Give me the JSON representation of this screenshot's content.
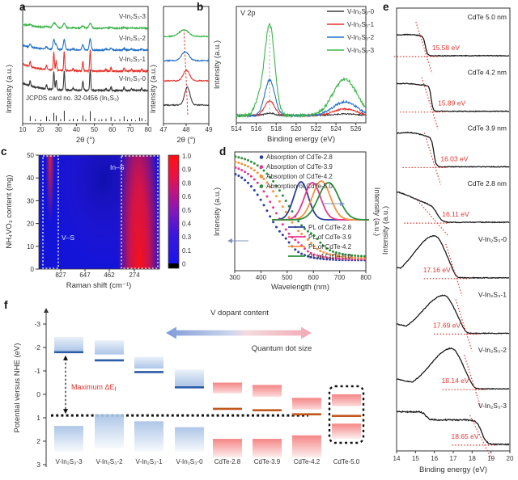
{
  "panel_labels": {
    "a": "a",
    "b": "b",
    "c": "c",
    "d": "d",
    "e": "e",
    "f": "f"
  },
  "chart_data": [
    {
      "id": "a",
      "type": "line",
      "xlabel": "2θ (°)",
      "ylabel": "Intensity (a.u.)",
      "xlim": [
        10,
        80
      ],
      "xticks": [
        10,
        20,
        30,
        40,
        50,
        60,
        70,
        80
      ],
      "series": [
        {
          "name": "V-In₂S₃-3",
          "color": "#3cb54b"
        },
        {
          "name": "V-In₂S₃-2",
          "color": "#2471c8"
        },
        {
          "name": "V-In₂S₃-1",
          "color": "#e8332d"
        },
        {
          "name": "V-In₂S₃-0",
          "color": "#3a3a3a"
        }
      ],
      "peaks_2theta": [
        14.2,
        23.3,
        27.4,
        28.7,
        33.2,
        38.2,
        43.6,
        47.7,
        56.5,
        59.3,
        66.6,
        70.8,
        76.4
      ],
      "peak_heights": [
        0.25,
        0.2,
        0.85,
        0.45,
        0.9,
        0.1,
        0.45,
        1.0,
        0.1,
        0.18,
        0.15,
        0.08,
        0.1
      ],
      "reference_label": "JCPDS card no. 32-0456 (In₂S₃)",
      "reference_sticks": [
        [
          14.2,
          0.5
        ],
        [
          17.1,
          0.2
        ],
        [
          20.1,
          0.15
        ],
        [
          23.3,
          0.45
        ],
        [
          25.0,
          0.15
        ],
        [
          27.4,
          0.8
        ],
        [
          28.7,
          0.55
        ],
        [
          31.2,
          0.2
        ],
        [
          33.2,
          1.0
        ],
        [
          36.2,
          0.15
        ],
        [
          38.2,
          0.25
        ],
        [
          40.5,
          0.2
        ],
        [
          43.6,
          0.55
        ],
        [
          45.2,
          0.2
        ],
        [
          47.7,
          0.95
        ],
        [
          50.2,
          0.3
        ],
        [
          52.5,
          0.15
        ],
        [
          54.2,
          0.2
        ],
        [
          56.5,
          0.25
        ],
        [
          59.3,
          0.4
        ],
        [
          61.5,
          0.15
        ],
        [
          64.2,
          0.2
        ],
        [
          66.6,
          0.45
        ],
        [
          68.5,
          0.15
        ],
        [
          70.8,
          0.2
        ],
        [
          73.0,
          0.1
        ],
        [
          75.2,
          0.35
        ],
        [
          76.5,
          0.3
        ],
        [
          78.5,
          0.1
        ]
      ],
      "inset": {
        "xlabel": "2θ (°)",
        "ylabel": "Intensity (a.u.)",
        "xticks": [
          47,
          48,
          49
        ],
        "peak_centers": [
          47.9,
          47.96,
          48.01,
          48.05
        ]
      }
    },
    {
      "id": "b",
      "type": "line",
      "annotation": "V 2p",
      "xlabel": "Binding energy (eV)",
      "ylabel": "Intensity (a.u.)",
      "xlim": [
        514,
        527
      ],
      "xticks": [
        514,
        516,
        518,
        520,
        522,
        524,
        526
      ],
      "peak_positions_eV": [
        517.35,
        524.9
      ],
      "series": [
        {
          "name": "V-In₂S₃-0",
          "color": "#3a3a3a",
          "amp": [
            3,
            2
          ]
        },
        {
          "name": "V-In₂S₃-1",
          "color": "#e8332d",
          "amp": [
            18,
            8
          ]
        },
        {
          "name": "V-In₂S₃-2",
          "color": "#2471c8",
          "amp": [
            44,
            17
          ]
        },
        {
          "name": "V-In₂S₃-3",
          "color": "#3cb54b",
          "amp": [
            112,
            45
          ]
        }
      ]
    },
    {
      "id": "c",
      "type": "heatmap",
      "xlabel": "Raman shift (cm⁻¹)",
      "ylabel": "NH₄VO₃ content (mg)",
      "xticks": [
        827,
        647,
        462,
        274
      ],
      "yticks": [
        0,
        10,
        20,
        30,
        40,
        50
      ],
      "colorbar_ticks": [
        "1.0",
        "0.9",
        "0.8",
        "0.6",
        "0.5",
        "0.4",
        "0.3",
        "0.1",
        "0"
      ],
      "region_labels": {
        "in_s": "In–S",
        "v_s": "V–S"
      },
      "color_low": "#1414d8",
      "color_high": "#ff1212"
    },
    {
      "id": "d",
      "type": "scatter+line",
      "xlabel": "Wavelength (nm)",
      "ylabel_left": "Intensity (a.u.)",
      "ylabel_right": "Intensity (a.u.)",
      "xlim": [
        300,
        800
      ],
      "xticks": [
        300,
        400,
        500,
        600,
        700,
        800
      ],
      "absorption_series": [
        {
          "name": "Absorption of CdTe-2.8",
          "color": "#2b3f9e",
          "edge_nm": 510
        },
        {
          "name": "Absorption of CdTe-3.9",
          "color": "#e8388f",
          "edge_nm": 560
        },
        {
          "name": "Absorption of CdTe-4.2",
          "color": "#f6923f",
          "edge_nm": 590
        },
        {
          "name": "Absorption of CdTe-5.0",
          "color": "#2f8f3c",
          "edge_nm": 620
        }
      ],
      "pl_series": [
        {
          "name": "PL of CdTe-2.8",
          "color": "#2b3f9e",
          "peak_nm": 572
        },
        {
          "name": "PL of CdTe-3.9",
          "color": "#e8388f",
          "peak_nm": 597
        },
        {
          "name": "PL of CdTe-4.2",
          "color": "#f6923f",
          "peak_nm": 612
        },
        {
          "name": "PL of CdTe-5.0",
          "color": "#2f8f3c",
          "peak_nm": 622
        }
      ]
    },
    {
      "id": "e",
      "type": "line",
      "xlabel": "Binding energy (eV)",
      "ylabel": "Intensity (a.u.)",
      "xlim": [
        14,
        20
      ],
      "xticks": [
        14,
        15,
        16,
        17,
        18,
        19,
        20
      ],
      "line_color": "#1a1a1a",
      "guide_color": "#e8332d",
      "series": [
        {
          "name": "CdTe 5.0 nm",
          "cutoff_label": "15.58 eV",
          "cutoff_eV": 15.58
        },
        {
          "name": "CdTe 4.2 nm",
          "cutoff_label": "15.89 eV",
          "cutoff_eV": 15.89
        },
        {
          "name": "CdTe 3.9 nm",
          "cutoff_label": "16.03 eV",
          "cutoff_eV": 16.03
        },
        {
          "name": "CdTe 2.8 nm",
          "cutoff_label": "16.11 eV",
          "cutoff_eV": 16.11
        },
        {
          "name": "V-In₂S₃-0",
          "cutoff_label": "17.16 eV",
          "cutoff_eV": 17.16
        },
        {
          "name": "V-In₂S₃-1",
          "cutoff_label": "17.69 eV",
          "cutoff_eV": 17.69
        },
        {
          "name": "V-In₂S₃-2",
          "cutoff_label": "18.14 eV",
          "cutoff_eV": 18.14
        },
        {
          "name": "V-In₂S₃-3",
          "cutoff_label": "18.65 eV",
          "cutoff_eV": 18.65
        }
      ]
    },
    {
      "id": "f",
      "type": "band-diagram",
      "ylabel": "Potential versus NHE (eV)",
      "yticks": [
        -3,
        -2,
        -1,
        0,
        1,
        2,
        3
      ],
      "arrow_label_left": "V dopant content",
      "arrow_label_right": "Quantum dot size",
      "annotation_main": "Maximum ΔE",
      "annotation_sub": "f",
      "fermi_level_eV": 0.9,
      "colors": {
        "vins_band": "#a9c3e6",
        "vins_level": "#2a5ca8",
        "cdte_band": "#f47f7f",
        "cdte_level": "#c2571b"
      },
      "columns": [
        {
          "name": "V-In₂S₃-3",
          "kind": "vins",
          "cb": [
            -2.45,
            -1.85
          ],
          "level": -1.8,
          "vb": [
            1.35,
            2.45
          ]
        },
        {
          "name": "V-In₂S₃-2",
          "kind": "vins",
          "cb": [
            -2.3,
            -1.7
          ],
          "level": -1.45,
          "vb": [
            0.85,
            2.3
          ]
        },
        {
          "name": "V-In₂S₃-1",
          "kind": "vins",
          "cb": [
            -1.6,
            -1.1
          ],
          "level": -0.95,
          "vb": [
            1.15,
            2.45
          ]
        },
        {
          "name": "V-In₂S₃-0",
          "kind": "vins",
          "cb": [
            -1.05,
            -0.35
          ],
          "level": -0.3,
          "vb": [
            1.4,
            2.45
          ]
        },
        {
          "name": "CdTe-2.8",
          "kind": "cdte",
          "cb": [
            -0.5,
            -0.05
          ],
          "level": 0.62,
          "vb": [
            1.9,
            2.7
          ]
        },
        {
          "name": "CdTe-3.9",
          "kind": "cdte",
          "cb": [
            -0.4,
            0.1
          ],
          "level": 0.68,
          "vb": [
            1.9,
            2.7
          ]
        },
        {
          "name": "CdTe-4.2",
          "kind": "cdte",
          "cb": [
            0.15,
            0.65
          ],
          "level": 0.85,
          "vb": [
            1.75,
            2.7
          ]
        },
        {
          "name": "CdTe-5.0",
          "kind": "cdte",
          "cb": [
            0.0,
            0.5
          ],
          "level": 0.92,
          "vb": [
            1.25,
            1.9
          ],
          "boxed": true
        }
      ]
    }
  ]
}
